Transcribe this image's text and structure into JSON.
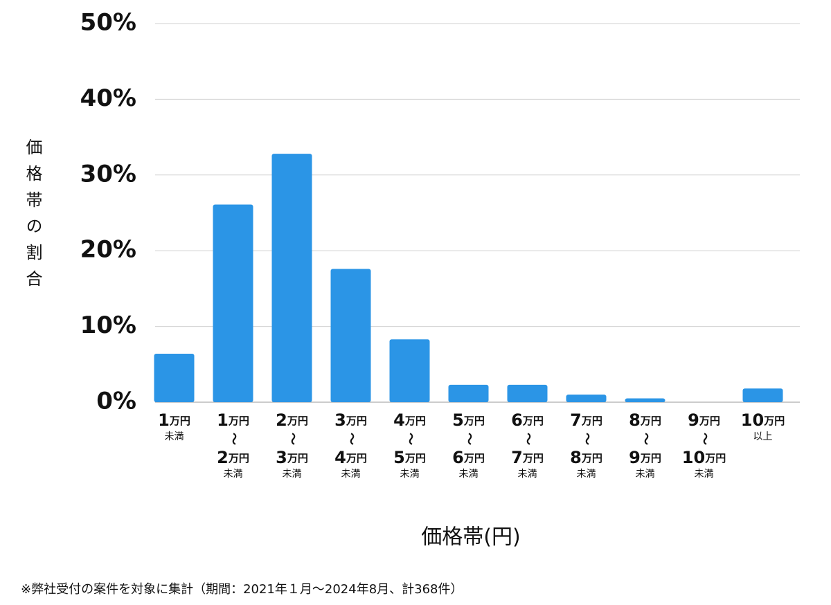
{
  "chart_data": {
    "type": "bar",
    "y_label": "価格帯の割合",
    "x_label": "価格帯(円)",
    "footnote": "※弊社受付の案件を対象に集計（期間：2021年１月〜2024年8月、計368件）",
    "categories": [
      [
        "1万円",
        "未満"
      ],
      [
        "1万円",
        "〜",
        "2万円",
        "未満"
      ],
      [
        "2万円",
        "〜",
        "3万円",
        "未満"
      ],
      [
        "3万円",
        "〜",
        "4万円",
        "未満"
      ],
      [
        "4万円",
        "〜",
        "5万円",
        "未満"
      ],
      [
        "5万円",
        "〜",
        "6万円",
        "未満"
      ],
      [
        "6万円",
        "〜",
        "7万円",
        "未満"
      ],
      [
        "7万円",
        "〜",
        "8万円",
        "未満"
      ],
      [
        "8万円",
        "〜",
        "9万円",
        "未満"
      ],
      [
        "9万円",
        "〜",
        "10万円",
        "未満"
      ],
      [
        "10万円",
        "以上"
      ]
    ],
    "values": [
      6.4,
      26.1,
      32.8,
      17.6,
      8.3,
      2.3,
      2.3,
      1.0,
      0.5,
      0,
      1.8
    ],
    "color": "#2b95e6",
    "ylim": [
      0,
      50
    ],
    "yticks": [
      {
        "value": 0,
        "label": "0%"
      },
      {
        "value": 10,
        "label": "10%"
      },
      {
        "value": 20,
        "label": "20%"
      },
      {
        "value": 30,
        "label": "30%"
      },
      {
        "value": 40,
        "label": "40%"
      },
      {
        "value": 50,
        "label": "50%"
      }
    ],
    "grid": true
  }
}
